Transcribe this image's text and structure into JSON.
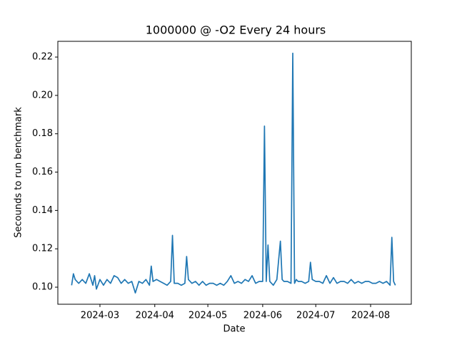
{
  "chart_data": {
    "type": "line",
    "title": "1000000 @ -O2 Every 24 hours",
    "x_label": "Date",
    "y_label": "Secounds to run benchmark",
    "x": [
      45,
      46,
      47,
      49,
      51,
      53,
      55,
      57,
      58,
      59,
      61,
      63,
      65,
      67,
      69,
      71,
      73,
      75,
      77,
      79,
      81,
      83,
      85,
      87,
      89,
      90,
      91,
      93,
      95,
      97,
      99,
      101,
      102,
      103,
      105,
      107,
      109,
      110,
      111,
      113,
      115,
      117,
      119,
      121,
      123,
      125,
      127,
      129,
      131,
      133,
      135,
      137,
      139,
      141,
      143,
      145,
      147,
      149,
      151,
      153,
      154,
      155,
      156,
      157,
      159,
      161,
      162,
      163,
      164,
      165,
      167,
      169,
      170,
      171,
      172,
      173,
      175,
      177,
      179,
      180,
      181,
      183,
      185,
      187,
      189,
      191,
      193,
      195,
      197,
      199,
      201,
      203,
      205,
      207,
      209,
      211,
      213,
      215,
      217,
      219,
      221,
      223,
      225,
      226,
      227,
      228
    ],
    "values": [
      0.101,
      0.107,
      0.104,
      0.102,
      0.104,
      0.102,
      0.107,
      0.101,
      0.106,
      0.099,
      0.104,
      0.101,
      0.104,
      0.102,
      0.106,
      0.105,
      0.102,
      0.104,
      0.102,
      0.103,
      0.097,
      0.103,
      0.102,
      0.104,
      0.101,
      0.111,
      0.103,
      0.104,
      0.103,
      0.102,
      0.101,
      0.103,
      0.127,
      0.102,
      0.102,
      0.101,
      0.102,
      0.116,
      0.104,
      0.102,
      0.103,
      0.101,
      0.103,
      0.101,
      0.102,
      0.102,
      0.101,
      0.102,
      0.101,
      0.103,
      0.106,
      0.102,
      0.103,
      0.102,
      0.104,
      0.103,
      0.106,
      0.102,
      0.103,
      0.103,
      0.184,
      0.103,
      0.122,
      0.103,
      0.101,
      0.104,
      0.114,
      0.124,
      0.104,
      0.103,
      0.103,
      0.102,
      0.222,
      0.102,
      0.104,
      0.103,
      0.103,
      0.102,
      0.103,
      0.113,
      0.104,
      0.103,
      0.103,
      0.102,
      0.106,
      0.102,
      0.105,
      0.102,
      0.103,
      0.103,
      0.102,
      0.104,
      0.102,
      0.103,
      0.102,
      0.103,
      0.103,
      0.102,
      0.102,
      0.103,
      0.102,
      0.103,
      0.101,
      0.126,
      0.103,
      0.101
    ],
    "color": "#1f77b4",
    "xlim": [
      37.2,
      237
    ],
    "xticks": [
      {
        "value": 61,
        "label": "2024-03"
      },
      {
        "value": 92,
        "label": "2024-04"
      },
      {
        "value": 122,
        "label": "2024-05"
      },
      {
        "value": 153,
        "label": "2024-06"
      },
      {
        "value": 183,
        "label": "2024-07"
      },
      {
        "value": 214,
        "label": "2024-08"
      }
    ],
    "ylim": [
      0.0911,
      0.2282
    ],
    "yticks": [
      {
        "value": 0.1,
        "label": "0.10"
      },
      {
        "value": 0.12,
        "label": "0.12"
      },
      {
        "value": 0.14,
        "label": "0.14"
      },
      {
        "value": 0.16,
        "label": "0.16"
      },
      {
        "value": 0.18,
        "label": "0.18"
      },
      {
        "value": 0.2,
        "label": "0.20"
      },
      {
        "value": 0.22,
        "label": "0.22"
      }
    ]
  }
}
